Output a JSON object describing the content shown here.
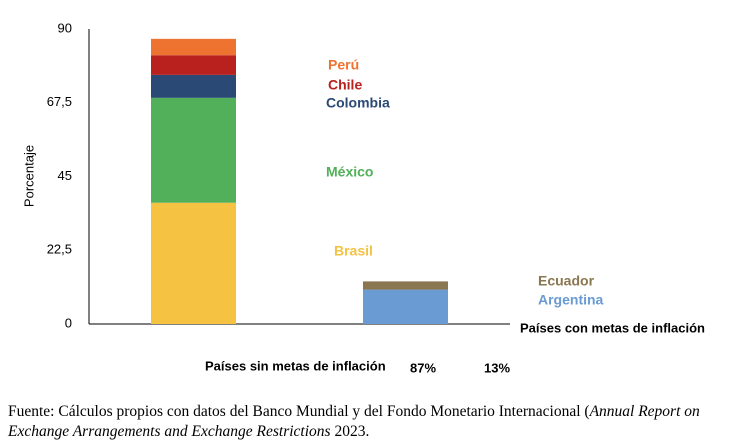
{
  "chart_data": {
    "type": "stacked-bar",
    "ylabel": "Porcentaje",
    "categories": [
      null,
      null
    ],
    "series": [
      {
        "name": "Brasil",
        "color": "#f5c242",
        "values": [
          37,
          null
        ]
      },
      {
        "name": "México",
        "color": "#52b05a",
        "values": [
          32,
          null
        ]
      },
      {
        "name": "Colombia",
        "color": "#2a4a75",
        "values": [
          7,
          null
        ]
      },
      {
        "name": "Chile",
        "color": "#b8211e",
        "values": [
          6,
          null
        ]
      },
      {
        "name": "Perú",
        "color": "#ee7330",
        "values": [
          5,
          null
        ]
      },
      {
        "name": "Argentina",
        "color": "#6a9bd2",
        "values": [
          null,
          10.5
        ]
      },
      {
        "name": "Ecuador",
        "color": "#8a7650",
        "values": [
          null,
          2.5
        ]
      }
    ],
    "ylim": [
      0,
      90
    ],
    "yticks": [
      0,
      {
        "value": 22.5,
        "label": "22,5"
      },
      45,
      {
        "value": 67.5,
        "label": "67,5"
      },
      90
    ],
    "grid": false,
    "annotations": [
      "Países con metas de inflación",
      "Países sin metas de inflación",
      "87%",
      "13%"
    ]
  },
  "source": [
    "Fuente: Cálculos propios con datos del Banco Mundial y del Fondo Monetario Internacional (",
    "Annual Report on Exchange Arrangements and Exchange Restrictions",
    " 2023."
  ]
}
